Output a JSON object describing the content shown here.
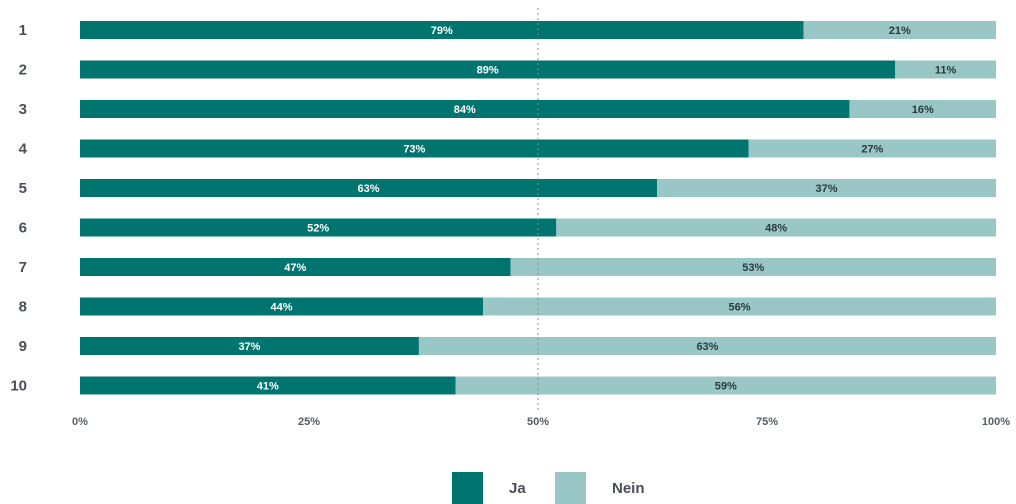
{
  "chart_data": {
    "type": "bar",
    "orientation": "horizontal",
    "stacked": true,
    "categories": [
      "1",
      "2",
      "3",
      "4",
      "5",
      "6",
      "7",
      "8",
      "9",
      "10"
    ],
    "series": [
      {
        "name": "Ja",
        "color": "#00746f",
        "values": [
          79,
          89,
          84,
          73,
          63,
          52,
          47,
          44,
          37,
          41
        ]
      },
      {
        "name": "Nein",
        "color": "#99c7c6",
        "values": [
          21,
          11,
          16,
          27,
          37,
          48,
          53,
          56,
          63,
          59
        ]
      }
    ],
    "value_suffix": "%",
    "xlim": [
      0,
      100
    ],
    "xticks": [
      0,
      25,
      50,
      75,
      100
    ],
    "xtick_labels": [
      "0%",
      "25%",
      "50%",
      "75%",
      "100%"
    ],
    "reference_line": 50,
    "legend_position": "bottom-center",
    "grid": false
  }
}
